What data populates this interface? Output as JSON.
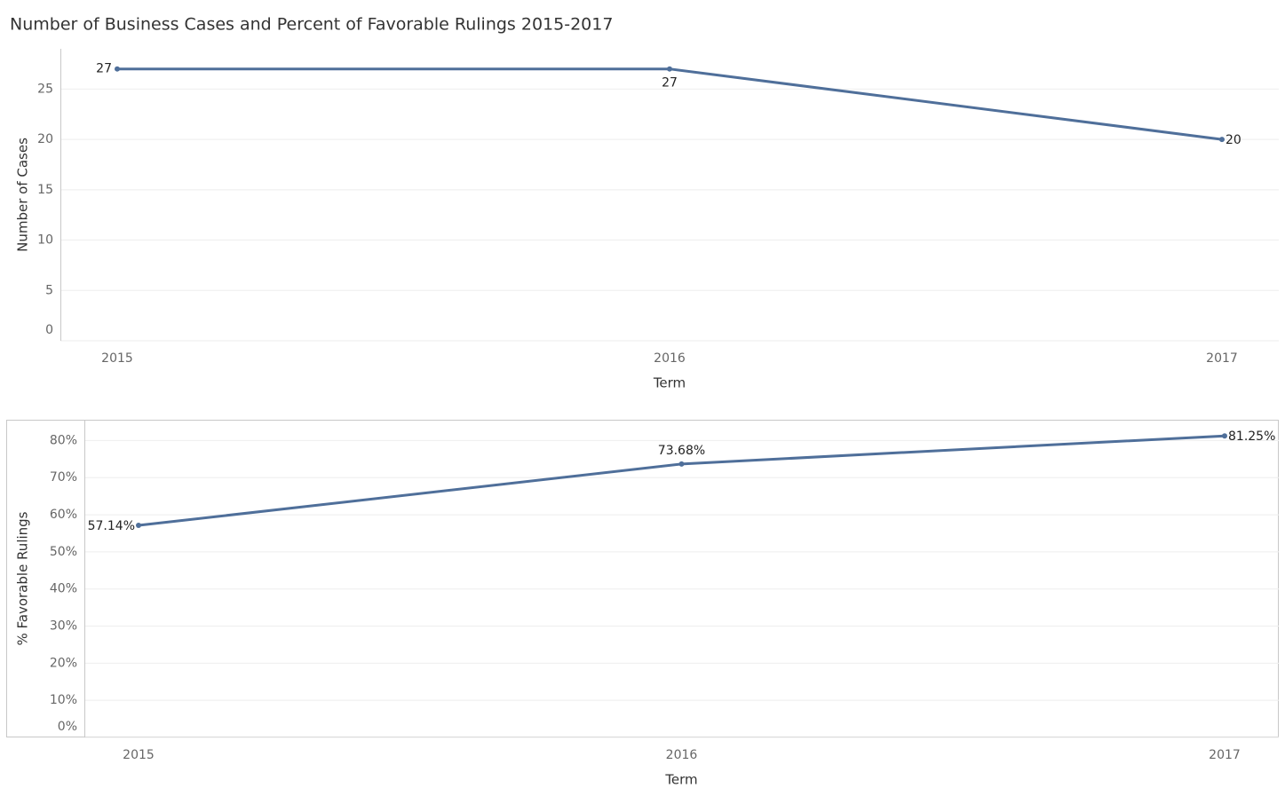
{
  "title": "Number of Business Cases and Percent of Favorable Rulings 2015-2017",
  "chart_data": [
    {
      "type": "line",
      "x_label": "Term",
      "y_label": "Number of Cases",
      "categories": [
        "2015",
        "2016",
        "2017"
      ],
      "values": [
        27,
        27,
        20
      ],
      "color": "#4f6f9a",
      "ylim": [
        0,
        29
      ],
      "yticks": [
        0,
        5,
        10,
        15,
        20,
        25
      ],
      "grid": true
    },
    {
      "type": "line",
      "x_label": "Term",
      "y_label": "% Favorable Rulings",
      "categories": [
        "2015",
        "2016",
        "2017"
      ],
      "values": [
        57.14,
        73.68,
        81.25
      ],
      "value_labels": [
        "57.14%",
        "73.68%",
        "81.25%"
      ],
      "color": "#4f6f9a",
      "ylim": [
        0,
        85.6
      ],
      "yticks": [
        {
          "value": 0,
          "label": "0%"
        },
        {
          "value": 10,
          "label": "10%"
        },
        {
          "value": 20,
          "label": "20%"
        },
        {
          "value": 30,
          "label": "30%"
        },
        {
          "value": 40,
          "label": "40%"
        },
        {
          "value": 50,
          "label": "50%"
        },
        {
          "value": 60,
          "label": "60%"
        },
        {
          "value": 70,
          "label": "70%"
        },
        {
          "value": 80,
          "label": "80%"
        }
      ],
      "grid": true
    }
  ]
}
